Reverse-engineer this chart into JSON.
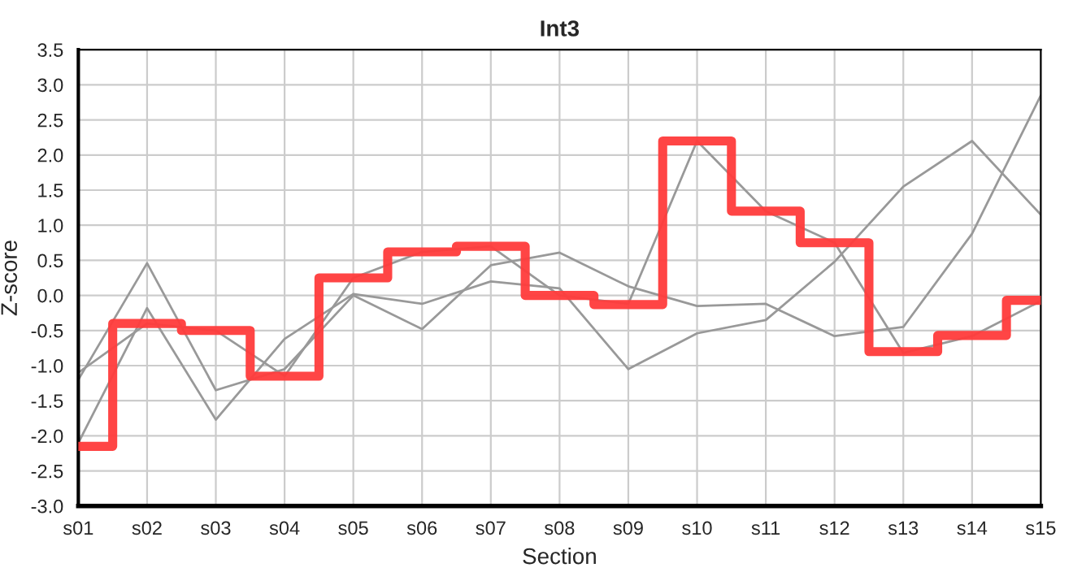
{
  "chart_data": {
    "type": "line",
    "title": "Int3",
    "xlabel": "Section",
    "ylabel": "Z-score",
    "categories": [
      "s01",
      "s02",
      "s03",
      "s04",
      "s05",
      "s06",
      "s07",
      "s08",
      "s09",
      "s10",
      "s11",
      "s12",
      "s13",
      "s14",
      "s15"
    ],
    "series": [
      {
        "color": "#999999",
        "values": [
          -1.2,
          0.46,
          -1.35,
          -1.05,
          0.0,
          -0.48,
          0.43,
          0.61,
          0.13,
          -0.15,
          -0.12,
          -0.58,
          -0.45,
          0.88,
          2.85
        ]
      },
      {
        "color": "#999999",
        "values": [
          -2.1,
          -0.18,
          -1.77,
          -0.62,
          0.02,
          -0.12,
          0.2,
          0.1,
          -1.05,
          -0.54,
          -0.35,
          0.48,
          1.55,
          2.2,
          1.15
        ]
      },
      {
        "color": "#999999",
        "values": [
          -1.1,
          -0.4,
          -0.5,
          -1.15,
          0.25,
          0.62,
          0.7,
          0.0,
          -0.12,
          2.2,
          1.2,
          0.75,
          -0.82,
          -0.58,
          -0.08
        ]
      },
      {
        "type": "step",
        "color": "#ff3b3b",
        "values": [
          -2.15,
          -0.4,
          -0.5,
          -1.15,
          0.25,
          0.62,
          0.7,
          0.0,
          -0.13,
          2.2,
          1.2,
          0.75,
          -0.8,
          -0.57,
          -0.07
        ]
      }
    ],
    "ylim": [
      -3.0,
      3.5
    ],
    "yticks": [
      {
        "value": -3,
        "label": "-3.0"
      },
      -2.5,
      {
        "value": -2,
        "label": "-2.0"
      },
      -1.5,
      {
        "value": -1,
        "label": "-1.0"
      },
      -0.5,
      {
        "value": 0,
        "label": "0.0"
      },
      0.5,
      {
        "value": 1,
        "label": "1.0"
      },
      1.5,
      {
        "value": 2,
        "label": "2.0"
      },
      2.5,
      {
        "value": 3,
        "label": "3.0"
      },
      3.5
    ],
    "grid": true,
    "line_style": "solid"
  }
}
